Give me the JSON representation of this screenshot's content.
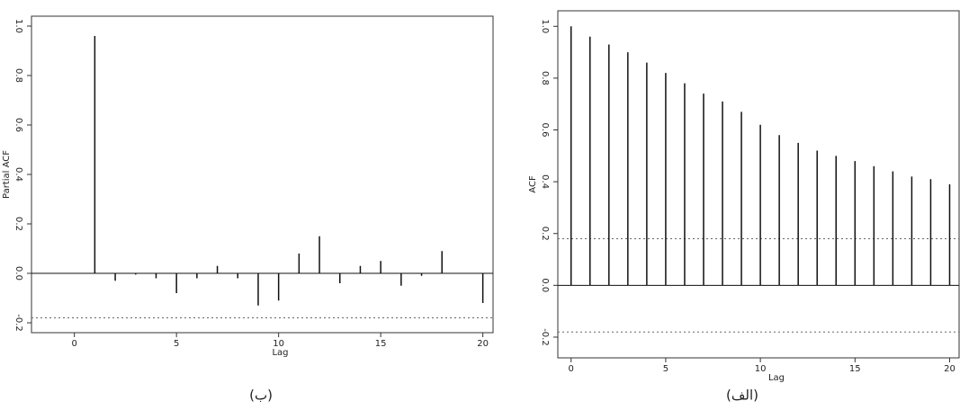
{
  "chart_data": [
    {
      "type": "stem",
      "y_label": "Partial ACF",
      "x_label": "Lag",
      "caption": "(ب)",
      "x": [
        1,
        2,
        3,
        4,
        5,
        6,
        7,
        8,
        9,
        10,
        11,
        12,
        13,
        14,
        15,
        16,
        17,
        18,
        19,
        20
      ],
      "values": [
        0.96,
        -0.03,
        -0.005,
        -0.02,
        -0.08,
        -0.02,
        0.03,
        -0.02,
        -0.13,
        -0.11,
        0.08,
        0.15,
        -0.04,
        0.03,
        0.05,
        -0.05,
        -0.01,
        0.09,
        0.0,
        -0.12
      ],
      "bounds": [
        -0.18
      ],
      "color": "#111",
      "xlim": [
        -2.1,
        20.5
      ],
      "xticks": [
        0,
        5,
        10,
        15,
        20
      ],
      "ylim": [
        -0.24,
        1.04
      ],
      "yticks": [
        {
          "value": -0.2,
          "label": "-0.2"
        },
        {
          "value": 0,
          "label": "0.0"
        },
        0.2,
        0.4,
        0.6,
        0.8,
        {
          "value": 1,
          "label": "1.0"
        }
      ]
    },
    {
      "type": "stem",
      "y_label": "ACF",
      "x_label": "Lag",
      "caption": "(الف)",
      "x": [
        0,
        1,
        2,
        3,
        4,
        5,
        6,
        7,
        8,
        9,
        10,
        11,
        12,
        13,
        14,
        15,
        16,
        17,
        18,
        19,
        20
      ],
      "values": [
        1.0,
        0.96,
        0.93,
        0.9,
        0.86,
        0.82,
        0.78,
        0.74,
        0.71,
        0.67,
        0.62,
        0.58,
        0.55,
        0.52,
        0.5,
        0.48,
        0.46,
        0.44,
        0.42,
        0.41,
        0.39
      ],
      "bounds": [
        0.18,
        -0.18
      ],
      "color": "#111",
      "xlim": [
        -0.7,
        20.5
      ],
      "xticks": [
        0,
        5,
        10,
        15,
        20
      ],
      "ylim": [
        -0.28,
        1.06
      ],
      "yticks": [
        {
          "value": -0.2,
          "label": "-0.2"
        },
        {
          "value": 0,
          "label": "0.0"
        },
        0.2,
        0.4,
        0.6,
        0.8,
        {
          "value": 1,
          "label": "1.0"
        }
      ]
    }
  ]
}
